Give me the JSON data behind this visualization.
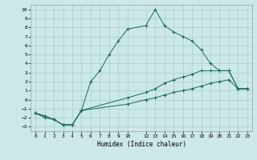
{
  "xlabel": "Humidex (Indice chaleur)",
  "background_color": "#cce8e8",
  "grid_color": "#aacece",
  "line_color": "#1a6b5a",
  "xlim": [
    -0.5,
    23.5
  ],
  "ylim": [
    -3.5,
    10.5
  ],
  "xticks": [
    0,
    1,
    2,
    3,
    4,
    5,
    6,
    7,
    8,
    9,
    10,
    12,
    13,
    14,
    15,
    16,
    17,
    18,
    19,
    20,
    21,
    22,
    23
  ],
  "yticks": [
    -3,
    -2,
    -1,
    0,
    1,
    2,
    3,
    4,
    5,
    6,
    7,
    8,
    9,
    10
  ],
  "line1_x": [
    0,
    1,
    2,
    3,
    4,
    5,
    6,
    7,
    8,
    9,
    10,
    12,
    13,
    14,
    15,
    16,
    17,
    18,
    19,
    20,
    21,
    22,
    23
  ],
  "line1_y": [
    -1.5,
    -2.0,
    -2.2,
    -2.8,
    -2.8,
    -1.2,
    2.0,
    3.2,
    5.0,
    6.5,
    7.8,
    8.2,
    10.0,
    8.2,
    7.5,
    7.0,
    6.5,
    5.5,
    4.0,
    3.2,
    3.2,
    1.2,
    1.2
  ],
  "line2_x": [
    0,
    1,
    2,
    3,
    4,
    5,
    10,
    12,
    13,
    14,
    15,
    16,
    17,
    18,
    19,
    20,
    21,
    22,
    23
  ],
  "line2_y": [
    -1.5,
    -1.8,
    -2.2,
    -2.8,
    -2.8,
    -1.2,
    -0.5,
    0.0,
    0.2,
    0.5,
    0.8,
    1.0,
    1.2,
    1.5,
    1.8,
    2.0,
    2.2,
    1.2,
    1.2
  ],
  "line3_x": [
    0,
    1,
    2,
    3,
    4,
    5,
    10,
    12,
    13,
    14,
    15,
    16,
    17,
    18,
    19,
    20,
    21,
    22,
    23
  ],
  "line3_y": [
    -1.5,
    -1.8,
    -2.2,
    -2.8,
    -2.8,
    -1.2,
    0.2,
    0.8,
    1.2,
    1.8,
    2.2,
    2.5,
    2.8,
    3.2,
    3.2,
    3.2,
    3.2,
    1.2,
    1.2
  ]
}
